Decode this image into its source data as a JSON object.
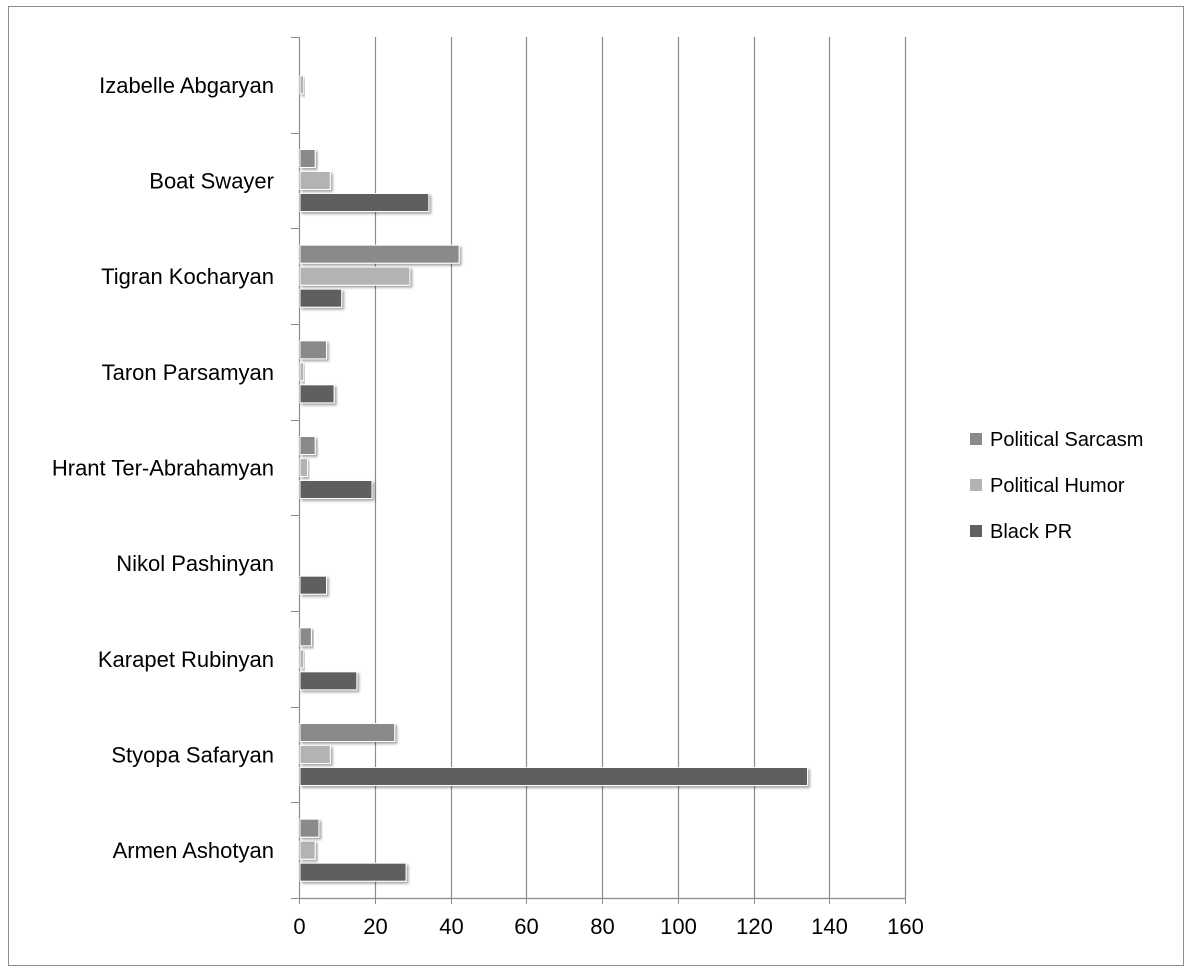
{
  "chart_data": {
    "type": "bar",
    "orientation": "horizontal",
    "title": "",
    "xlabel": "",
    "ylabel": "",
    "xlim": [
      0,
      160
    ],
    "x_ticks": [
      "0",
      "20",
      "40",
      "60",
      "80",
      "100",
      "120",
      "140",
      "160"
    ],
    "grid": "vertical major gridlines",
    "legend_position": "right",
    "categories": [
      "Armen Ashotyan",
      "Styopa Safaryan",
      "Karapet Rubinyan",
      "Nikol Pashinyan",
      "Hrant Ter-Abrahamyan",
      "Taron Parsamyan",
      "Tigran Kocharyan",
      "Boat Swayer",
      "Izabelle Abgaryan"
    ],
    "series": [
      {
        "name": "Black PR",
        "color": "#5f5f5f",
        "values": [
          28,
          134,
          15,
          7,
          19,
          9,
          11,
          34,
          0
        ]
      },
      {
        "name": "Political Humor",
        "color": "#b3b3b3",
        "values": [
          4,
          8,
          1,
          0,
          2,
          1,
          29,
          8,
          1
        ]
      },
      {
        "name": "Political Sarcasm",
        "color": "#8a8a8a",
        "values": [
          5,
          25,
          3,
          0,
          4,
          7,
          42,
          4,
          0
        ]
      }
    ]
  }
}
